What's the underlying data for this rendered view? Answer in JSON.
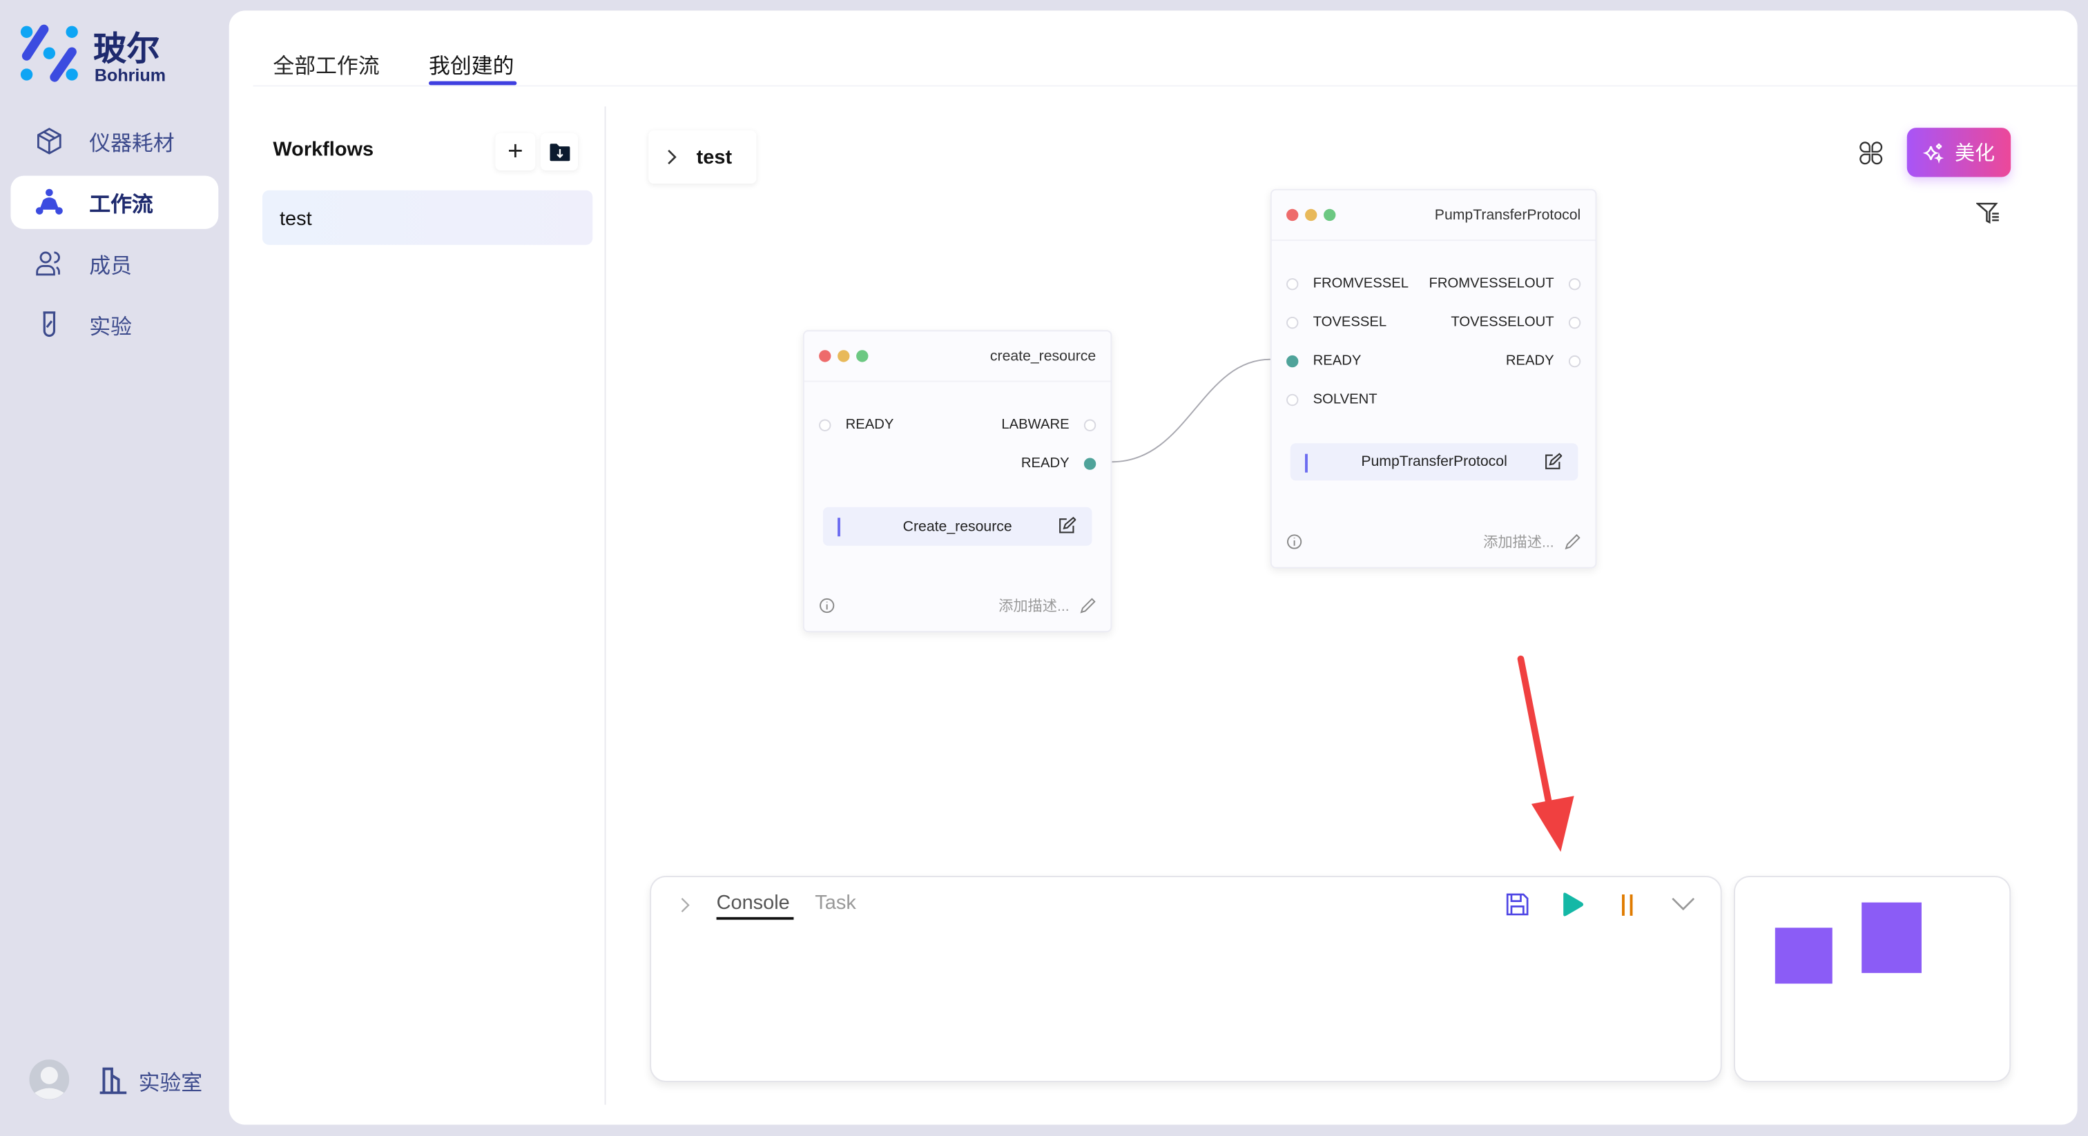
{
  "brand": {
    "name_cn": "玻尔",
    "name_en": "Bohrium"
  },
  "sidebar": {
    "items": [
      {
        "label": "仪器耗材",
        "icon": "cube-icon"
      },
      {
        "label": "工作流",
        "icon": "workflow-icon",
        "active": true
      },
      {
        "label": "成员",
        "icon": "members-icon"
      },
      {
        "label": "实验",
        "icon": "test-tube-icon"
      }
    ],
    "lab_label": "实验室"
  },
  "tabs": [
    {
      "label": "全部工作流"
    },
    {
      "label": "我创建的",
      "active": true
    }
  ],
  "workflows": {
    "title": "Workflows",
    "items": [
      {
        "label": "test",
        "selected": true
      }
    ]
  },
  "breadcrumb": {
    "label": "test"
  },
  "toolbar": {
    "beautify_label": "美化"
  },
  "nodes": [
    {
      "title": "create_resource",
      "rows": [
        {
          "left": "READY",
          "right": "LABWARE"
        },
        {
          "left": "",
          "right": "READY",
          "right_connected": true
        }
      ],
      "name": "Create_resource",
      "desc_placeholder": "添加描述..."
    },
    {
      "title": "PumpTransferProtocol",
      "rows": [
        {
          "left": "FROMVESSEL",
          "right": "FROMVESSELOUT"
        },
        {
          "left": "TOVESSEL",
          "right": "TOVESSELOUT"
        },
        {
          "left": "READY",
          "right": "READY",
          "left_connected": true
        },
        {
          "left": "SOLVENT",
          "right": ""
        }
      ],
      "name": "PumpTransferProtocol",
      "desc_placeholder": "添加描述..."
    }
  ],
  "console": {
    "tabs": [
      {
        "label": "Console",
        "active": true
      },
      {
        "label": "Task"
      }
    ]
  },
  "colors": {
    "accent": "#3f3fe0",
    "play": "#14b8a6",
    "pause": "#e07b00",
    "minimap": "#8b5cf6",
    "arrow": "#f04040",
    "connected_port": "#4fa39a"
  }
}
